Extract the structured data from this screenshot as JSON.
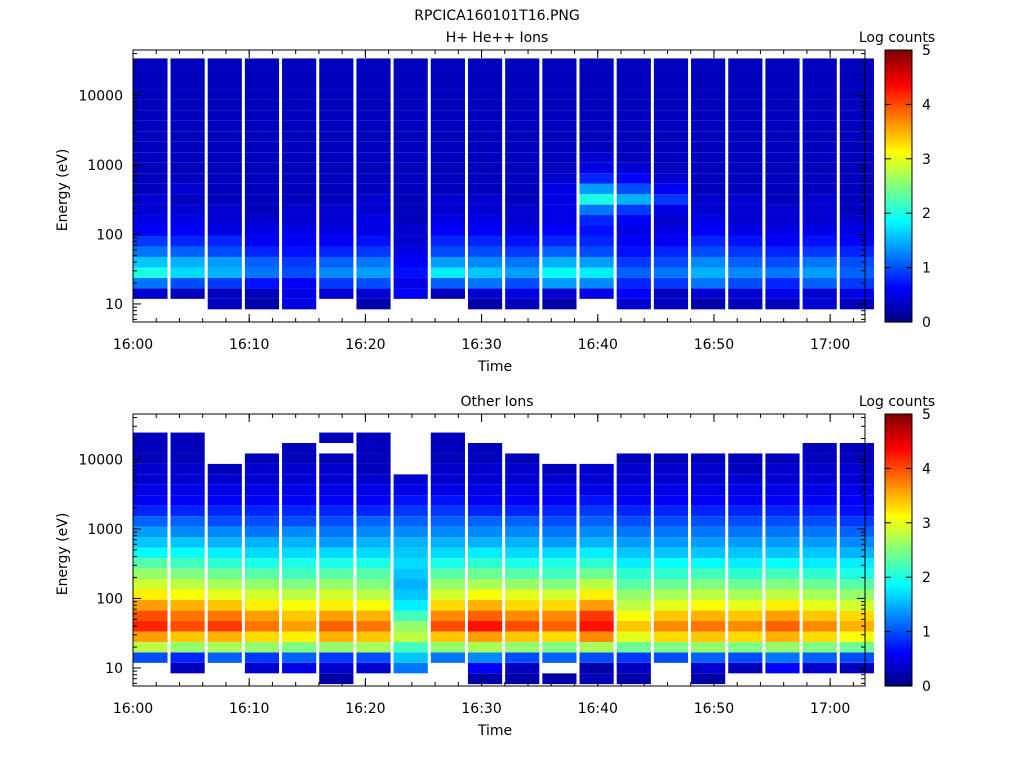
{
  "figure_title": "RPCICA160101T16.PNG",
  "colormap": "jet",
  "chart_data": [
    {
      "type": "heatmap",
      "title": "H+ He++ Ions",
      "xlabel": "Time",
      "ylabel": "Energy (eV)",
      "xlim": [
        "16:00",
        "17:03"
      ],
      "x_ticks": [
        "16:00",
        "16:10",
        "16:20",
        "16:30",
        "16:40",
        "16:50",
        "17:00"
      ],
      "ylim": [
        5.5,
        45000
      ],
      "yscale": "log",
      "y_ticks": [
        "10",
        "100",
        "1000",
        "10000"
      ],
      "colorbar": {
        "label": "Log counts",
        "range": [
          0,
          5
        ],
        "ticks": [
          "0",
          "1",
          "2",
          "3",
          "4",
          "5"
        ]
      },
      "time_bins": [
        "16:01.5",
        "16:04.7",
        "16:07.9",
        "16:11.1",
        "16:14.3",
        "16:17.5",
        "16:20.7",
        "16:23.9",
        "16:27.1",
        "16:30.3",
        "16:33.5",
        "16:36.7",
        "16:39.9",
        "16:43.1",
        "16:46.3",
        "16:49.5",
        "16:52.7",
        "16:55.9",
        "16:59.1",
        "17:02.3"
      ],
      "energy_bins_eV": [
        7.0,
        10.0,
        14.0,
        20.0,
        28.0,
        40.0,
        56.0,
        80.0,
        113,
        160,
        226,
        320,
        452,
        640,
        905,
        1280,
        1810,
        2560,
        3620,
        5120,
        7240,
        10240,
        14480,
        20480,
        28960,
        40000
      ],
      "log_counts": [
        [
          null,
          null,
          null,
          null,
          null,
          null,
          null,
          null,
          null,
          null,
          null,
          null,
          null,
          null,
          null,
          null,
          null,
          null,
          null,
          null
        ],
        [
          null,
          null,
          0.3,
          0.2,
          0.5,
          null,
          0.2,
          null,
          null,
          0.2,
          0.3,
          0.2,
          null,
          0.4,
          0.3,
          0.2,
          0.3,
          0.3,
          0.4,
          0.3
        ],
        [
          0.4,
          0.3,
          0.3,
          0.3,
          0.5,
          0.4,
          0.4,
          0.6,
          0.3,
          0.4,
          0.5,
          0.4,
          0.5,
          0.6,
          0.3,
          0.4,
          0.4,
          0.5,
          0.4,
          0.5
        ],
        [
          1.2,
          1.0,
          0.9,
          0.7,
          0.6,
          0.9,
          1.0,
          0.5,
          1.1,
          1.2,
          1.0,
          1.4,
          1.3,
          0.8,
          0.9,
          1.2,
          1.0,
          0.8,
          1.1,
          0.9
        ],
        [
          2.0,
          1.7,
          1.5,
          1.2,
          1.0,
          1.3,
          1.4,
          0.7,
          1.8,
          1.6,
          1.4,
          1.9,
          1.8,
          1.1,
          1.2,
          1.5,
          1.3,
          1.2,
          1.4,
          1.1
        ],
        [
          1.6,
          1.5,
          1.4,
          1.1,
          0.9,
          1.1,
          1.2,
          0.6,
          1.4,
          1.3,
          1.2,
          1.5,
          1.4,
          0.9,
          1.0,
          1.3,
          1.1,
          1.0,
          1.2,
          1.0
        ],
        [
          1.2,
          1.1,
          1.0,
          0.8,
          0.7,
          0.8,
          0.9,
          0.5,
          1.0,
          1.0,
          0.9,
          1.1,
          1.0,
          0.7,
          0.8,
          1.0,
          0.9,
          0.8,
          0.9,
          0.8
        ],
        [
          0.9,
          0.8,
          0.8,
          0.6,
          0.6,
          0.6,
          0.7,
          0.4,
          0.8,
          0.8,
          0.7,
          0.8,
          0.8,
          0.6,
          0.6,
          0.8,
          0.7,
          0.6,
          0.7,
          0.6
        ],
        [
          0.6,
          0.6,
          0.5,
          0.5,
          0.5,
          0.5,
          0.5,
          0.4,
          0.6,
          0.6,
          0.5,
          0.6,
          0.7,
          0.5,
          0.5,
          0.6,
          0.5,
          0.5,
          0.5,
          0.5
        ],
        [
          0.5,
          0.5,
          0.4,
          0.4,
          0.4,
          0.4,
          0.5,
          0.3,
          0.5,
          0.5,
          0.4,
          0.5,
          0.8,
          0.6,
          0.4,
          0.5,
          0.4,
          0.4,
          0.4,
          0.4
        ],
        [
          0.4,
          0.4,
          0.4,
          0.3,
          0.4,
          0.4,
          0.4,
          0.3,
          0.4,
          0.4,
          0.4,
          0.5,
          1.2,
          0.9,
          0.5,
          0.4,
          0.4,
          0.4,
          0.4,
          0.3
        ],
        [
          0.4,
          0.3,
          0.3,
          0.3,
          0.3,
          0.3,
          0.4,
          0.3,
          0.4,
          0.4,
          0.3,
          0.5,
          2.0,
          1.5,
          0.9,
          0.4,
          0.4,
          0.3,
          0.4,
          0.3
        ],
        [
          0.3,
          0.4,
          0.3,
          0.3,
          0.3,
          0.3,
          0.3,
          0.3,
          0.3,
          0.3,
          0.3,
          0.5,
          1.4,
          1.0,
          0.6,
          0.3,
          0.3,
          0.3,
          0.3,
          0.3
        ],
        [
          0.3,
          0.3,
          0.3,
          0.3,
          0.3,
          0.3,
          0.3,
          0.3,
          0.3,
          0.3,
          0.3,
          0.4,
          0.8,
          0.6,
          0.4,
          0.3,
          0.3,
          0.3,
          0.3,
          0.3
        ],
        [
          0.3,
          0.3,
          0.3,
          0.3,
          0.3,
          0.3,
          0.3,
          0.3,
          0.3,
          0.3,
          0.3,
          0.3,
          0.5,
          0.4,
          0.3,
          0.3,
          0.3,
          0.3,
          0.3,
          0.3
        ],
        [
          0.3,
          0.3,
          0.3,
          0.3,
          0.3,
          0.3,
          0.3,
          0.3,
          0.3,
          0.3,
          0.3,
          0.3,
          0.4,
          0.3,
          0.3,
          0.3,
          0.3,
          0.3,
          0.3,
          0.3
        ],
        [
          0.3,
          0.3,
          0.3,
          0.3,
          0.3,
          0.3,
          0.3,
          0.3,
          0.3,
          0.3,
          0.3,
          0.3,
          0.3,
          0.3,
          0.3,
          0.3,
          0.3,
          0.3,
          0.3,
          0.3
        ],
        [
          0.3,
          0.3,
          0.3,
          0.3,
          0.3,
          0.3,
          0.3,
          0.3,
          0.3,
          0.3,
          0.3,
          0.3,
          0.3,
          0.3,
          0.3,
          0.3,
          0.3,
          0.3,
          0.3,
          0.3
        ],
        [
          0.3,
          0.3,
          0.3,
          0.3,
          0.3,
          0.3,
          0.3,
          0.3,
          0.3,
          0.3,
          0.3,
          0.3,
          0.3,
          0.3,
          0.3,
          0.3,
          0.3,
          0.3,
          0.3,
          0.3
        ],
        [
          0.3,
          0.3,
          0.3,
          0.3,
          0.3,
          0.3,
          0.3,
          0.3,
          0.3,
          0.3,
          0.3,
          0.3,
          0.3,
          0.3,
          0.3,
          0.3,
          0.3,
          0.3,
          0.3,
          0.3
        ],
        [
          0.3,
          0.3,
          0.3,
          0.3,
          0.3,
          0.3,
          0.3,
          0.3,
          0.3,
          0.3,
          0.3,
          0.3,
          0.3,
          0.3,
          0.3,
          0.3,
          0.3,
          0.3,
          0.3,
          0.3
        ],
        [
          0.3,
          0.3,
          0.3,
          0.3,
          0.3,
          0.3,
          0.3,
          0.3,
          0.3,
          0.3,
          0.3,
          0.3,
          0.3,
          0.3,
          0.3,
          0.3,
          0.3,
          0.3,
          0.3,
          0.3
        ],
        [
          0.3,
          0.3,
          0.3,
          0.3,
          0.3,
          0.3,
          0.3,
          0.3,
          0.3,
          0.3,
          0.3,
          0.3,
          0.3,
          0.3,
          0.3,
          0.3,
          0.3,
          0.3,
          0.3,
          0.3
        ],
        [
          0.3,
          0.3,
          0.3,
          0.3,
          0.3,
          0.3,
          0.3,
          0.3,
          0.3,
          0.3,
          0.3,
          0.3,
          0.3,
          0.3,
          0.3,
          0.3,
          0.3,
          0.3,
          0.3,
          0.3
        ],
        [
          0.3,
          0.3,
          0.3,
          0.3,
          0.3,
          0.3,
          0.3,
          0.3,
          0.3,
          0.3,
          0.3,
          0.3,
          0.3,
          0.3,
          0.3,
          0.3,
          0.3,
          0.3,
          0.3,
          0.3
        ]
      ]
    },
    {
      "type": "heatmap",
      "title": "Other Ions",
      "xlabel": "Time",
      "ylabel": "Energy (eV)",
      "xlim": [
        "16:00",
        "17:03"
      ],
      "x_ticks": [
        "16:00",
        "16:10",
        "16:20",
        "16:30",
        "16:40",
        "16:50",
        "17:00"
      ],
      "ylim": [
        5.5,
        45000
      ],
      "yscale": "log",
      "y_ticks": [
        "10",
        "100",
        "1000",
        "10000"
      ],
      "colorbar": {
        "label": "Log counts",
        "range": [
          0,
          5
        ],
        "ticks": [
          "0",
          "1",
          "2",
          "3",
          "4",
          "5"
        ]
      },
      "time_bins": [
        "16:01.5",
        "16:04.7",
        "16:07.9",
        "16:11.1",
        "16:14.3",
        "16:17.5",
        "16:20.7",
        "16:23.9",
        "16:27.1",
        "16:30.3",
        "16:33.5",
        "16:36.7",
        "16:39.9",
        "16:43.1",
        "16:46.3",
        "16:49.5",
        "16:52.7",
        "16:55.9",
        "16:59.1",
        "17:02.3"
      ],
      "energy_bins_eV": [
        7.0,
        10.0,
        14.0,
        20.0,
        28.0,
        40.0,
        56.0,
        80.0,
        113,
        160,
        226,
        320,
        452,
        640,
        905,
        1280,
        1810,
        2560,
        3620,
        5120,
        7240,
        10240,
        14480,
        20480,
        28960,
        40000
      ],
      "log_counts": [
        [
          null,
          null,
          null,
          null,
          null,
          0.2,
          null,
          null,
          null,
          0.2,
          0.2,
          0.2,
          0.3,
          0.2,
          null,
          0.2,
          null,
          null,
          null,
          null
        ],
        [
          null,
          0.3,
          null,
          0.4,
          0.5,
          0.4,
          0.4,
          1.2,
          null,
          0.6,
          0.3,
          null,
          0.2,
          0.3,
          null,
          0.4,
          0.3,
          0.6,
          0.4,
          0.3
        ],
        [
          1.0,
          0.8,
          1.1,
          0.9,
          1.1,
          0.9,
          1.0,
          1.6,
          1.2,
          1.3,
          1.0,
          1.1,
          1.0,
          0.9,
          1.0,
          1.1,
          1.0,
          1.2,
          1.1,
          1.0
        ],
        [
          2.8,
          2.6,
          2.7,
          2.6,
          2.5,
          2.6,
          2.7,
          2.2,
          2.6,
          2.7,
          2.6,
          2.5,
          2.7,
          2.4,
          2.5,
          2.6,
          2.5,
          2.6,
          2.5,
          2.4
        ],
        [
          3.6,
          3.4,
          3.5,
          3.3,
          3.2,
          3.5,
          3.4,
          2.8,
          3.4,
          3.6,
          3.4,
          3.3,
          3.7,
          3.0,
          3.3,
          3.4,
          3.3,
          3.5,
          3.3,
          3.1
        ],
        [
          4.2,
          4.0,
          4.1,
          3.8,
          3.6,
          3.9,
          3.8,
          2.6,
          4.0,
          4.3,
          4.0,
          3.9,
          4.3,
          3.4,
          3.7,
          3.8,
          3.7,
          3.9,
          3.7,
          3.5
        ],
        [
          4.0,
          3.8,
          3.8,
          3.6,
          3.4,
          3.6,
          3.5,
          2.2,
          3.7,
          3.9,
          3.7,
          3.7,
          4.1,
          3.1,
          3.4,
          3.5,
          3.4,
          3.6,
          3.4,
          3.3
        ],
        [
          3.6,
          3.5,
          3.4,
          3.2,
          3.1,
          3.2,
          3.1,
          1.8,
          3.3,
          3.5,
          3.3,
          3.3,
          3.6,
          2.8,
          3.0,
          3.1,
          3.0,
          3.2,
          3.0,
          2.9
        ],
        [
          3.2,
          3.1,
          3.0,
          2.9,
          2.8,
          2.9,
          2.8,
          1.6,
          2.9,
          3.1,
          3.0,
          2.9,
          3.2,
          2.6,
          2.7,
          2.8,
          2.7,
          2.8,
          2.7,
          2.6
        ],
        [
          2.9,
          2.8,
          2.7,
          2.6,
          2.5,
          2.6,
          2.5,
          1.5,
          2.6,
          2.7,
          2.6,
          2.5,
          2.8,
          2.3,
          2.4,
          2.5,
          2.4,
          2.5,
          2.4,
          2.3
        ],
        [
          2.6,
          2.5,
          2.4,
          2.3,
          2.2,
          2.3,
          2.3,
          1.6,
          2.3,
          2.4,
          2.3,
          2.2,
          2.4,
          2.1,
          2.1,
          2.2,
          2.1,
          2.2,
          2.1,
          2.0
        ],
        [
          2.3,
          2.2,
          2.1,
          2.0,
          2.0,
          2.0,
          2.0,
          1.7,
          2.0,
          2.1,
          2.0,
          2.0,
          2.1,
          1.8,
          1.9,
          1.9,
          1.8,
          1.9,
          1.8,
          1.8
        ],
        [
          1.9,
          1.9,
          1.8,
          1.7,
          1.7,
          1.7,
          1.7,
          1.6,
          1.7,
          1.8,
          1.7,
          1.7,
          1.8,
          1.6,
          1.6,
          1.6,
          1.6,
          1.6,
          1.6,
          1.5
        ],
        [
          1.6,
          1.6,
          1.5,
          1.5,
          1.5,
          1.4,
          1.5,
          1.5,
          1.5,
          1.5,
          1.5,
          1.4,
          1.5,
          1.4,
          1.4,
          1.4,
          1.4,
          1.4,
          1.4,
          1.3
        ],
        [
          1.4,
          1.3,
          1.3,
          1.2,
          1.3,
          1.2,
          1.3,
          1.3,
          1.3,
          1.3,
          1.3,
          1.2,
          1.3,
          1.2,
          1.2,
          1.2,
          1.2,
          1.2,
          1.2,
          1.1
        ],
        [
          1.1,
          1.1,
          1.0,
          1.0,
          1.0,
          1.0,
          1.1,
          1.1,
          1.1,
          1.1,
          1.1,
          1.0,
          1.1,
          1.0,
          1.0,
          1.0,
          1.0,
          1.0,
          1.0,
          0.9
        ],
        [
          0.8,
          0.8,
          0.8,
          0.8,
          0.8,
          0.8,
          0.8,
          0.9,
          0.9,
          0.8,
          0.8,
          0.8,
          0.9,
          0.8,
          0.8,
          0.8,
          0.8,
          0.8,
          0.8,
          0.7
        ],
        [
          0.6,
          0.6,
          0.6,
          0.6,
          0.6,
          0.6,
          0.6,
          0.7,
          0.7,
          0.6,
          0.6,
          0.6,
          0.7,
          0.6,
          0.6,
          0.6,
          0.6,
          0.6,
          0.6,
          0.6
        ],
        [
          0.5,
          0.5,
          0.5,
          0.5,
          0.5,
          0.5,
          0.5,
          0.5,
          0.5,
          0.5,
          0.5,
          0.5,
          0.5,
          0.5,
          0.5,
          0.5,
          0.5,
          0.5,
          0.5,
          0.5
        ],
        [
          0.4,
          0.4,
          0.4,
          0.4,
          0.4,
          0.4,
          0.4,
          0.4,
          0.4,
          0.4,
          0.4,
          0.4,
          0.4,
          0.4,
          0.4,
          0.4,
          0.4,
          0.4,
          0.4,
          0.4
        ],
        [
          0.4,
          0.4,
          0.3,
          0.4,
          0.4,
          0.4,
          0.3,
          null,
          0.4,
          0.4,
          0.4,
          0.3,
          0.4,
          0.4,
          0.4,
          0.4,
          0.3,
          0.4,
          0.4,
          0.4
        ],
        [
          0.3,
          0.3,
          null,
          0.3,
          0.3,
          0.3,
          0.3,
          null,
          0.3,
          0.3,
          0.3,
          null,
          null,
          0.3,
          0.3,
          0.3,
          0.3,
          0.3,
          0.3,
          0.3
        ],
        [
          0.3,
          0.3,
          null,
          null,
          0.3,
          null,
          0.3,
          null,
          0.3,
          0.3,
          null,
          null,
          null,
          null,
          null,
          null,
          null,
          null,
          0.3,
          0.3
        ],
        [
          0.3,
          0.3,
          null,
          null,
          null,
          0.3,
          0.3,
          null,
          0.3,
          null,
          null,
          null,
          null,
          null,
          null,
          null,
          null,
          null,
          null,
          null
        ],
        [
          null,
          null,
          null,
          null,
          null,
          null,
          null,
          null,
          null,
          null,
          null,
          null,
          null,
          null,
          null,
          null,
          null,
          null,
          null,
          null
        ]
      ]
    }
  ]
}
